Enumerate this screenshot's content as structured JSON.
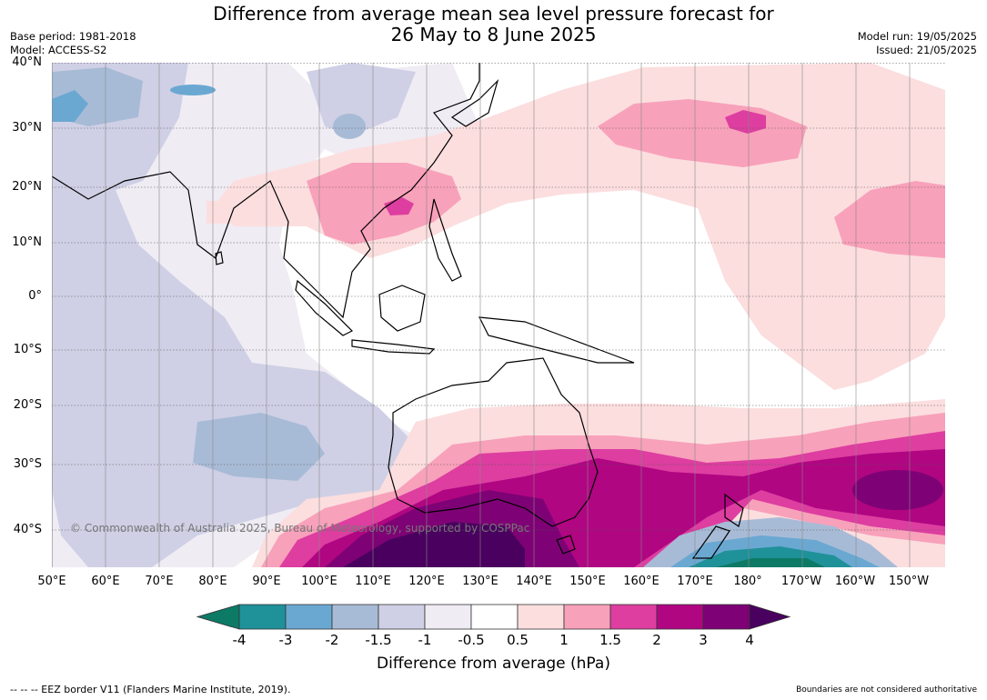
{
  "title_line1": "Difference from average mean sea level pressure forecast for",
  "title_line2": "26 May to 8 June 2025",
  "base_period": "Base period: 1981-2018",
  "model": "Model: ACCESS-S2",
  "model_run": "Model run: 19/05/2025",
  "issued": "Issued: 21/05/2025",
  "copyright": "© Commonwealth of Australia 2025, Bureau of Meteorology, supported by COSPPac",
  "lat_labels": [
    "40°N",
    "30°N",
    "20°N",
    "10°N",
    "0°",
    "10°S",
    "20°S",
    "30°S",
    "40°S"
  ],
  "lon_labels": [
    "50°E",
    "60°E",
    "70°E",
    "80°E",
    "90°E",
    "100°E",
    "110°E",
    "120°E",
    "130°E",
    "140°E",
    "150°E",
    "160°E",
    "170°E",
    "180°",
    "170°W",
    "160°W",
    "150°W"
  ],
  "colorbar": {
    "label": "Difference from average (hPa)",
    "ticks": [
      "-4",
      "-3",
      "-2",
      "-1.5",
      "-1",
      "-0.5",
      "0.5",
      "1",
      "1.5",
      "2",
      "3",
      "4"
    ],
    "colors": [
      "#0d7a66",
      "#1f9199",
      "#6aa8d2",
      "#a8bbd6",
      "#cfd0e5",
      "#efecf4",
      "#ffffff",
      "#fcdedf",
      "#f8a1ba",
      "#dd3ea0",
      "#b00682",
      "#7e0275",
      "#4a005f"
    ]
  },
  "footer_left": "--  --  -- EEZ border V11 (Flanders Marine Institute, 2019).",
  "footer_right": "Boundaries are not considered authoritative"
}
